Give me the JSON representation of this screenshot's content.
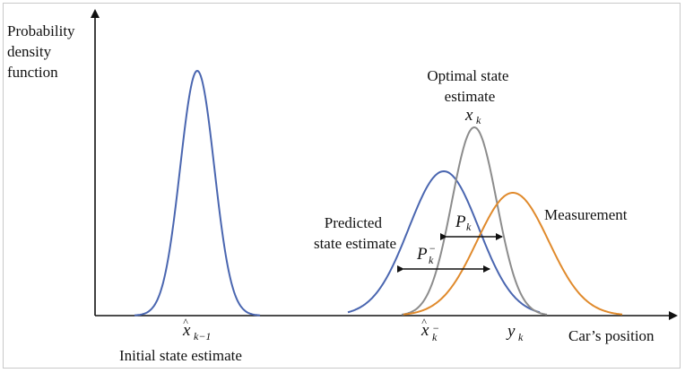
{
  "labels": {
    "y_axis": [
      "Probability",
      "density",
      "function"
    ],
    "x_axis": "Car’s position",
    "optimal": [
      "Optimal state",
      "estimate"
    ],
    "predicted": [
      "Predicted",
      "state estimate"
    ],
    "measurement": "Measurement",
    "initial": "Initial state estimate"
  },
  "symbols": {
    "x_hat_prev": {
      "base": "x",
      "hat": "^",
      "sub": "k−1"
    },
    "x_hat_pred": {
      "base": "x",
      "hat": "^",
      "sub": "k",
      "sup": "−"
    },
    "y_k": {
      "base": "y",
      "sub": "k"
    },
    "x_k": {
      "base": "x",
      "sub": "k"
    },
    "P_k": {
      "base": "P",
      "sub": "k"
    },
    "P_k_minus": {
      "base": "P",
      "sub": "k",
      "sup": "−"
    }
  },
  "colors": {
    "initial": "#4a66b0",
    "predicted": "#4a66b0",
    "optimal": "#8c8c8c",
    "measurement": "#e08a2c",
    "axis": "#111111"
  }
}
